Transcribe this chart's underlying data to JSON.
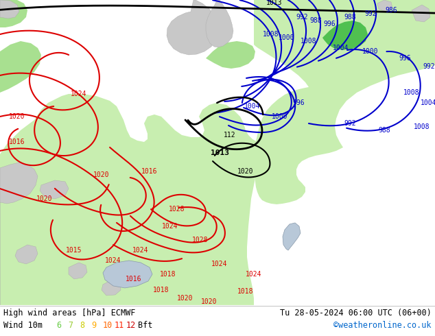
{
  "title_left": "High wind areas [hPa] ECMWF",
  "title_right": "Tu 28-05-2024 06:00 UTC (06+00)",
  "subtitle_left": "Wind 10m",
  "subtitle_right": "©weatheronline.co.uk",
  "bft_labels": [
    "6",
    "7",
    "8",
    "9",
    "10",
    "11",
    "12",
    "Bft"
  ],
  "bft_colors": [
    "#66cc44",
    "#99cc33",
    "#cccc00",
    "#ffaa00",
    "#ff6600",
    "#ff2200",
    "#cc0000",
    "#000000"
  ],
  "bg_color": "#ffffff",
  "footer_bg": "#ffffff",
  "figsize": [
    6.34,
    4.9
  ],
  "dpi": 100,
  "land_gray": "#c8c8c8",
  "land_light": "#e8e8e8",
  "green_light": "#c8eeb0",
  "green_mid": "#a8e090",
  "green_dark": "#50c050",
  "sea_color": "#ddeeff",
  "isobar_red": "#dd0000",
  "isobar_black": "#000000",
  "isobar_blue": "#0000cc",
  "footer_line_color": "#aaaaaa"
}
